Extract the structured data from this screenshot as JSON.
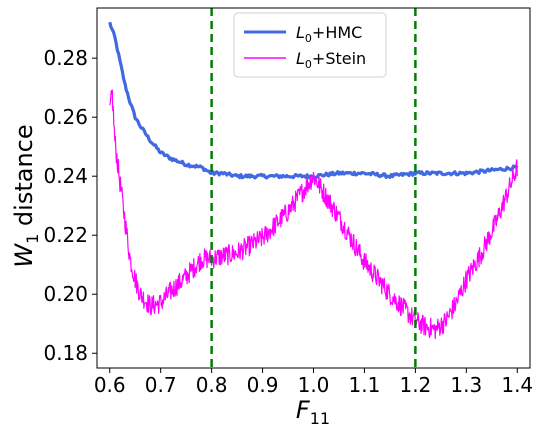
{
  "chart_data": {
    "type": "line",
    "xlabel": "F11",
    "ylabel": "W1 distance",
    "xlim": [
      0.575,
      1.425
    ],
    "ylim": [
      0.175,
      0.297
    ],
    "x_ticks": [
      "0.6",
      "0.7",
      "0.8",
      "0.9",
      "1.0",
      "1.1",
      "1.2",
      "1.3",
      "1.4"
    ],
    "y_ticks": [
      "0.18",
      "0.20",
      "0.22",
      "0.24",
      "0.26",
      "0.28"
    ],
    "grid": false,
    "legend_position": "top-center",
    "vlines": [
      {
        "x": 0.8,
        "color": "#008000",
        "style": "dashed"
      },
      {
        "x": 1.2,
        "color": "#008000",
        "style": "dashed"
      }
    ],
    "series": [
      {
        "name": "L0+HMC",
        "color": "#4169E1",
        "x": [
          0.6,
          0.61,
          0.62,
          0.63,
          0.64,
          0.65,
          0.66,
          0.68,
          0.7,
          0.72,
          0.75,
          0.78,
          0.8,
          0.82,
          0.85,
          0.9,
          0.95,
          1.0,
          1.05,
          1.1,
          1.15,
          1.2,
          1.25,
          1.3,
          1.35,
          1.4
        ],
        "values": [
          0.292,
          0.287,
          0.279,
          0.271,
          0.265,
          0.26,
          0.257,
          0.252,
          0.248,
          0.246,
          0.244,
          0.243,
          0.241,
          0.241,
          0.24,
          0.24,
          0.24,
          0.24,
          0.241,
          0.241,
          0.24,
          0.241,
          0.241,
          0.241,
          0.242,
          0.243
        ]
      },
      {
        "name": "L0+Stein",
        "color": "#FF00FF",
        "x": [
          0.6,
          0.605,
          0.61,
          0.62,
          0.63,
          0.64,
          0.65,
          0.66,
          0.68,
          0.7,
          0.72,
          0.75,
          0.78,
          0.8,
          0.85,
          0.9,
          0.95,
          1.0,
          1.05,
          1.1,
          1.15,
          1.2,
          1.22,
          1.24,
          1.26,
          1.28,
          1.3,
          1.33,
          1.36,
          1.38,
          1.4
        ],
        "values": [
          0.262,
          0.268,
          0.252,
          0.238,
          0.225,
          0.212,
          0.205,
          0.2,
          0.196,
          0.197,
          0.201,
          0.206,
          0.212,
          0.212,
          0.214,
          0.219,
          0.228,
          0.24,
          0.226,
          0.211,
          0.2,
          0.191,
          0.189,
          0.188,
          0.191,
          0.197,
          0.205,
          0.214,
          0.225,
          0.234,
          0.243
        ]
      }
    ]
  }
}
